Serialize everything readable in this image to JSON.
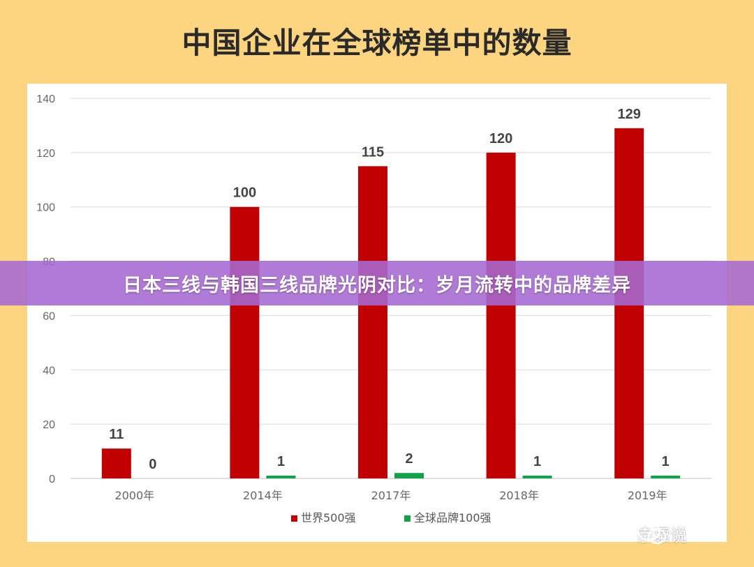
{
  "chart_data": {
    "type": "bar",
    "title": "中国企业在全球榜单中的数量",
    "categories": [
      "2000年",
      "2014年",
      "2017年",
      "2018年",
      "2019年"
    ],
    "series": [
      {
        "name": "世界500强",
        "values": [
          11,
          100,
          115,
          120,
          129
        ],
        "color": "#c00000"
      },
      {
        "name": "全球品牌100强",
        "values": [
          0,
          1,
          2,
          1,
          1
        ],
        "color": "#12a34a"
      }
    ],
    "ylim": [
      0,
      140
    ],
    "yticks": [
      "0",
      "20",
      "40",
      "60",
      "80",
      "100",
      "120",
      "140"
    ],
    "grid": true,
    "legend": "bottom"
  },
  "banner": {
    "text": "日本三线与韩国三线品牌光阴对比：岁月流转中的品牌差异"
  },
  "watermark": {
    "text": "宗粟说",
    "icon": "wechat-icon"
  }
}
